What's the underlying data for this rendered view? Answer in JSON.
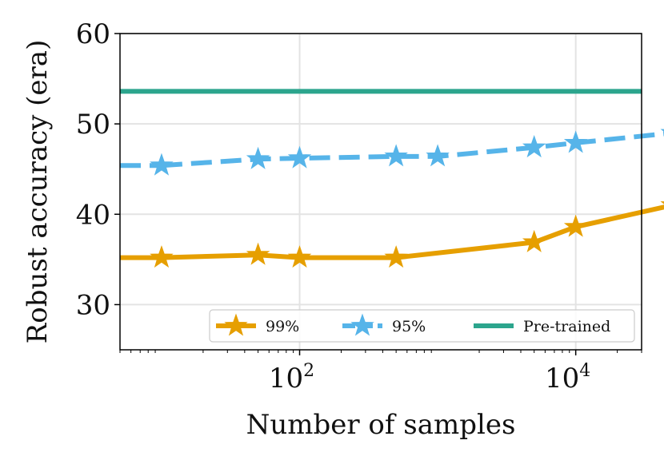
{
  "chart_data": {
    "type": "line",
    "xscale": "log",
    "xlabel": "Number of samples",
    "ylabel": "Robust accuracy (era)",
    "xlim": [
      5,
      30000
    ],
    "ylim": [
      25,
      60
    ],
    "grid": true,
    "legend_position": "lower-right",
    "x_ticks": [
      {
        "value": 100,
        "base": "10",
        "exp": "2"
      },
      {
        "value": 10000,
        "base": "10",
        "exp": "4"
      }
    ],
    "y_ticks": [
      30,
      40,
      50,
      60
    ],
    "series": [
      {
        "name": "99%",
        "color": "#e69f00",
        "linestyle": "solid",
        "marker": "star",
        "x": [
          10,
          50,
          100,
          500,
          5000,
          10000,
          50000
        ],
        "y": [
          35.2,
          35.5,
          35.2,
          35.2,
          36.9,
          38.6,
          41.0
        ]
      },
      {
        "name": "95%",
        "color": "#56b4e9",
        "linestyle": "dashed",
        "marker": "star",
        "x": [
          10,
          50,
          100,
          500,
          1000,
          5000,
          10000,
          50000
        ],
        "y": [
          45.4,
          46.1,
          46.2,
          46.4,
          46.4,
          47.4,
          47.9,
          49.0
        ]
      },
      {
        "name": "Pre-trained",
        "color": "#2ca58d",
        "linestyle": "solid",
        "marker": "none",
        "hline": 53.6
      }
    ]
  }
}
